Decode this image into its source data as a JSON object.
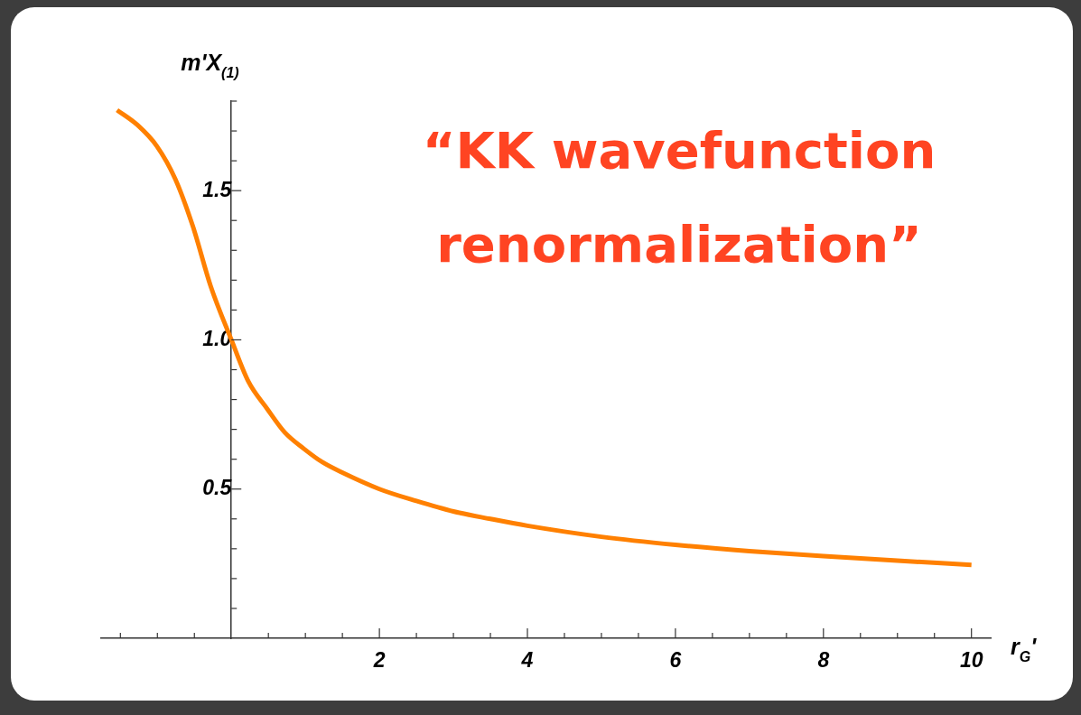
{
  "chart_data": {
    "type": "line",
    "xlabel": "r$_{G}$'",
    "ylabel": "m'X$_{(1)}$",
    "annotations": [
      "“KK wavefunction renormalization”"
    ],
    "x": [
      -1.545,
      -1.27,
      -1.01,
      -0.76,
      -0.52,
      -0.28,
      0,
      0.23,
      0.48,
      0.72,
      0.98,
      1.23,
      1.5,
      2,
      2.5,
      3,
      3.5,
      4,
      5,
      6,
      7,
      8,
      9,
      10
    ],
    "series": [
      {
        "color": "#ff8000",
        "values": [
          1.77,
          1.72,
          1.65,
          1.54,
          1.38,
          1.18,
          1.0,
          0.86,
          0.77,
          0.69,
          0.635,
          0.59,
          0.555,
          0.5,
          0.46,
          0.425,
          0.4,
          0.377,
          0.34,
          0.313,
          0.292,
          0.275,
          0.26,
          0.246
        ]
      }
    ],
    "xlim": [
      -1.76,
      10.26
    ],
    "ylim": [
      0,
      1.8
    ],
    "xticks": [
      {
        "value": -1.5,
        "label": null
      },
      {
        "value": -1,
        "label": null
      },
      {
        "value": -0.5,
        "label": null
      },
      {
        "value": 0.5,
        "label": null
      },
      {
        "value": 1,
        "label": null
      },
      {
        "value": 1.5,
        "label": null
      },
      2,
      {
        "value": 2.5,
        "label": null
      },
      {
        "value": 3,
        "label": null
      },
      {
        "value": 3.5,
        "label": null
      },
      4,
      {
        "value": 4.5,
        "label": null
      },
      {
        "value": 5,
        "label": null
      },
      {
        "value": 5.5,
        "label": null
      },
      6,
      {
        "value": 6.5,
        "label": null
      },
      {
        "value": 7,
        "label": null
      },
      {
        "value": 7.5,
        "label": null
      },
      8,
      {
        "value": 8.5,
        "label": null
      },
      {
        "value": 9,
        "label": null
      },
      {
        "value": 9.5,
        "label": null
      },
      10
    ],
    "yticks": [
      {
        "value": 0.1,
        "label": null
      },
      {
        "value": 0.2,
        "label": null
      },
      {
        "value": 0.3,
        "label": null
      },
      {
        "value": 0.4,
        "label": null
      },
      0.5,
      {
        "value": 0.6,
        "label": null
      },
      {
        "value": 0.7,
        "label": null
      },
      {
        "value": 0.8,
        "label": null
      },
      {
        "value": 0.9,
        "label": null
      },
      {
        "value": 1,
        "label": "1.0"
      },
      {
        "value": 1.1,
        "label": null
      },
      {
        "value": 1.2,
        "label": null
      },
      {
        "value": 1.3,
        "label": null
      },
      {
        "value": 1.4,
        "label": null
      },
      1.5,
      {
        "value": 1.6,
        "label": null
      },
      {
        "value": 1.7,
        "label": null
      },
      {
        "value": 1.8,
        "label": null
      }
    ],
    "grid": false,
    "legend": false,
    "marker": "none",
    "line_style": "solid"
  }
}
